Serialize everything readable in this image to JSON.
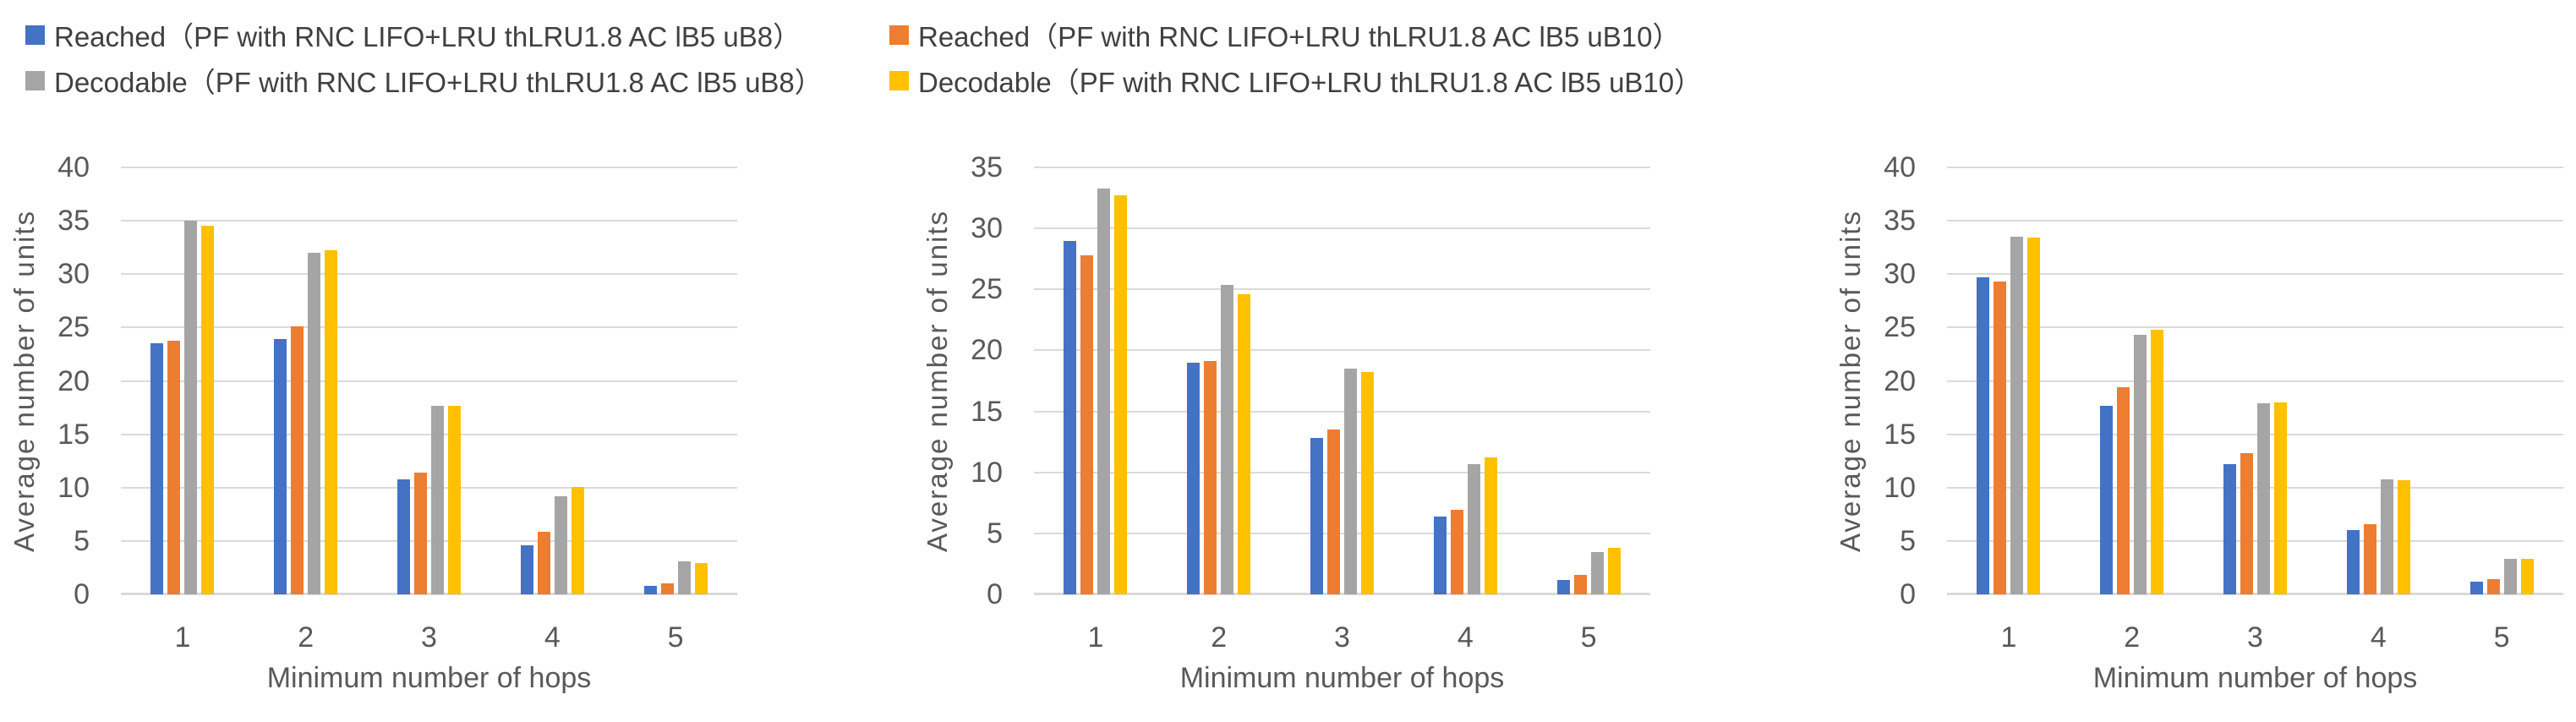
{
  "figure": {
    "background": "#ffffff",
    "text_color_axis": "#595959",
    "text_color_legend": "#404040",
    "gridline_color": "#D9D9D9"
  },
  "legend": {
    "position": "top-left",
    "items": [
      {
        "label": "Reached（PF with RNC LIFO+LRU thLRU1.8 AC lB5 uB8）",
        "color": "#4472C4"
      },
      {
        "label": "Reached（PF with RNC LIFO+LRU thLRU1.8 AC lB5 uB10）",
        "color": "#ED7D31"
      },
      {
        "label": "Decodable（PF with RNC LIFO+LRU thLRU1.8 AC lB5 uB8）",
        "color": "#A5A5A5"
      },
      {
        "label": "Decodable（PF with RNC LIFO+LRU thLRU1.8 AC lB5 uB10）",
        "color": "#FFC000"
      }
    ]
  },
  "chart_data": [
    {
      "type": "bar",
      "title": "",
      "xlabel": "Minimum number of hops",
      "ylabel": "Average number of units",
      "categories": [
        "1",
        "2",
        "3",
        "4",
        "5"
      ],
      "ylim": [
        0,
        40
      ],
      "ytick_step": 5,
      "ytick_labels": [
        "0",
        "5",
        "10",
        "15",
        "20",
        "25",
        "30",
        "35",
        "40"
      ],
      "grid": true,
      "legend_position": "top-left-shared",
      "series": [
        {
          "name": "Reached（PF with RNC LIFO+LRU thLRU1.8 AC lB5 uB8）",
          "color": "#4472C4",
          "values": [
            23.5,
            23.9,
            10.8,
            4.6,
            0.8
          ]
        },
        {
          "name": "Reached（PF with RNC LIFO+LRU thLRU1.8 AC lB5 uB10）",
          "color": "#ED7D31",
          "values": [
            23.8,
            25.1,
            11.4,
            5.9,
            1.0
          ]
        },
        {
          "name": "Decodable（PF with RNC LIFO+LRU thLRU1.8 AC lB5 uB8）",
          "color": "#A5A5A5",
          "values": [
            35.0,
            32.0,
            17.7,
            9.2,
            3.1
          ]
        },
        {
          "name": "Decodable（PF with RNC LIFO+LRU thLRU1.8 AC lB5 uB10）",
          "color": "#FFC000",
          "values": [
            34.5,
            32.2,
            17.7,
            10.1,
            2.9
          ]
        }
      ]
    },
    {
      "type": "bar",
      "title": "",
      "xlabel": "Minimum number of hops",
      "ylabel": "Average number of units",
      "categories": [
        "1",
        "2",
        "3",
        "4",
        "5"
      ],
      "ylim": [
        0,
        35
      ],
      "ytick_step": 5,
      "ytick_labels": [
        "0",
        "5",
        "10",
        "15",
        "20",
        "25",
        "30",
        "35"
      ],
      "grid": true,
      "legend_position": "top-left-shared",
      "series": [
        {
          "name": "Reached（PF with RNC LIFO+LRU thLRU1.8 AC lB5 uB8）",
          "color": "#4472C4",
          "values": [
            29.0,
            19.0,
            12.8,
            6.4,
            1.2
          ]
        },
        {
          "name": "Reached（PF with RNC LIFO+LRU thLRU1.8 AC lB5 uB10）",
          "color": "#ED7D31",
          "values": [
            27.8,
            19.1,
            13.5,
            6.9,
            1.6
          ]
        },
        {
          "name": "Decodable（PF with RNC LIFO+LRU thLRU1.8 AC lB5 uB8）",
          "color": "#A5A5A5",
          "values": [
            33.3,
            25.4,
            18.5,
            10.7,
            3.5
          ]
        },
        {
          "name": "Decodable（PF with RNC LIFO+LRU thLRU1.8 AC lB5 uB10）",
          "color": "#FFC000",
          "values": [
            32.7,
            24.6,
            18.2,
            11.2,
            3.8
          ]
        }
      ]
    },
    {
      "type": "bar",
      "title": "",
      "xlabel": "Minimum number of hops",
      "ylabel": "Average number of units",
      "categories": [
        "1",
        "2",
        "3",
        "4",
        "5"
      ],
      "ylim": [
        0,
        40
      ],
      "ytick_step": 5,
      "ytick_labels": [
        "0",
        "5",
        "10",
        "15",
        "20",
        "25",
        "30",
        "35",
        "40"
      ],
      "grid": true,
      "legend_position": "top-left-shared",
      "series": [
        {
          "name": "Reached（PF with RNC LIFO+LRU thLRU1.8 AC lB5 uB8）",
          "color": "#4472C4",
          "values": [
            29.7,
            17.7,
            12.2,
            6.0,
            1.2
          ]
        },
        {
          "name": "Reached（PF with RNC LIFO+LRU thLRU1.8 AC lB5 uB10）",
          "color": "#ED7D31",
          "values": [
            29.3,
            19.4,
            13.2,
            6.6,
            1.4
          ]
        },
        {
          "name": "Decodable（PF with RNC LIFO+LRU thLRU1.8 AC lB5 uB8）",
          "color": "#A5A5A5",
          "values": [
            33.5,
            24.3,
            17.9,
            10.8,
            3.3
          ]
        },
        {
          "name": "Decodable（PF with RNC LIFO+LRU thLRU1.8 AC lB5 uB10）",
          "color": "#FFC000",
          "values": [
            33.4,
            24.8,
            18.0,
            10.7,
            3.3
          ]
        }
      ]
    }
  ]
}
